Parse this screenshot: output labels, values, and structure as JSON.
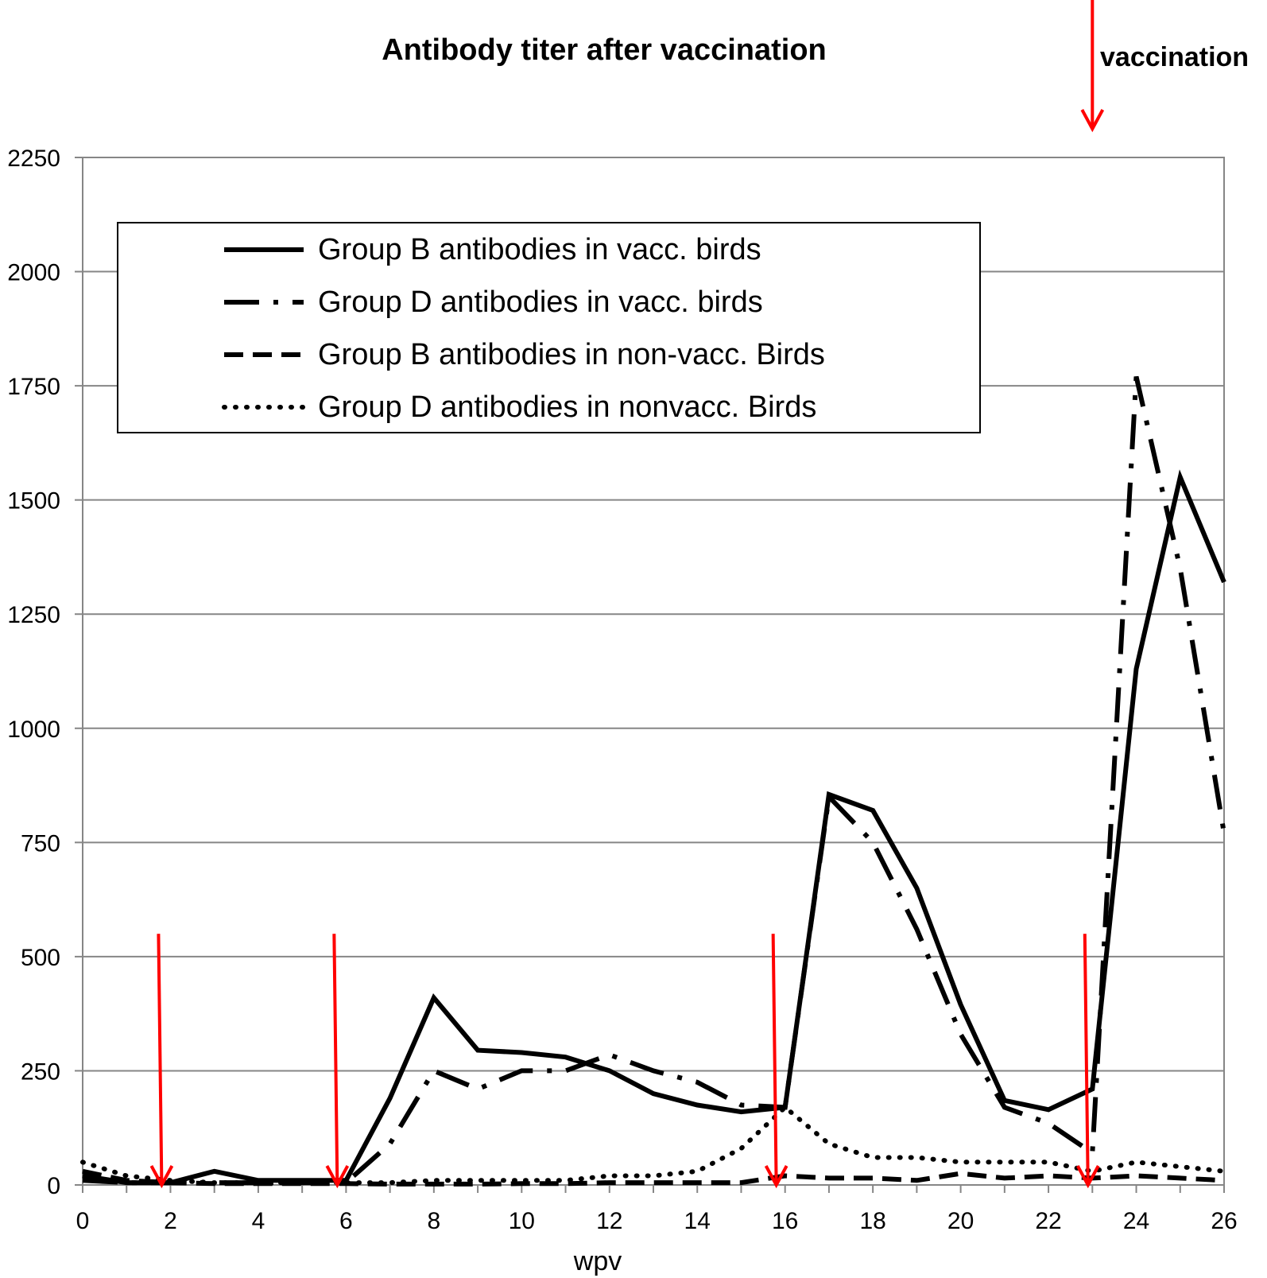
{
  "chart_data": {
    "type": "line",
    "title": "Antibody titer after vaccination",
    "xlabel": "wpv",
    "ylabel": "",
    "xlim": [
      0,
      26
    ],
    "ylim": [
      0,
      2250
    ],
    "x_ticks": [
      "0",
      "2",
      "4",
      "6",
      "8",
      "10",
      "12",
      "14",
      "16",
      "18",
      "20",
      "22",
      "24",
      "26"
    ],
    "y_ticks": [
      "0",
      "250",
      "500",
      "750",
      "1000",
      "1250",
      "1500",
      "1750",
      "2000",
      "2250"
    ],
    "grid": "horizontal",
    "legend_position": "top-left",
    "annotation": {
      "text": "vaccination",
      "x": 23,
      "color": "#ff0000"
    },
    "vaccination_weeks": [
      1.8,
      5.8,
      15.8,
      22.9
    ],
    "x": [
      0,
      1,
      2,
      3,
      4,
      5,
      6,
      7,
      8,
      9,
      10,
      11,
      12,
      13,
      14,
      15,
      16,
      17,
      18,
      19,
      20,
      21,
      22,
      23,
      24,
      25,
      26
    ],
    "series": [
      {
        "name": "Group B antibodies in vacc. birds",
        "style": "solid",
        "color": "#000000",
        "values": [
          20,
          5,
          5,
          30,
          10,
          10,
          10,
          190,
          410,
          295,
          290,
          280,
          250,
          200,
          175,
          160,
          170,
          855,
          820,
          650,
          395,
          185,
          165,
          210,
          1130,
          1550,
          1320
        ]
      },
      {
        "name": "Group D antibodies in vacc. birds",
        "style": "longdash-dot",
        "color": "#000000",
        "values": [
          10,
          5,
          5,
          5,
          5,
          5,
          5,
          90,
          250,
          210,
          250,
          250,
          285,
          250,
          225,
          175,
          170,
          850,
          750,
          560,
          330,
          170,
          135,
          70,
          1770,
          1350,
          770
        ]
      },
      {
        "name": "Group B antibodies in non-vacc. Birds",
        "style": "dash",
        "color": "#000000",
        "values": [
          30,
          10,
          5,
          3,
          3,
          3,
          3,
          2,
          2,
          2,
          3,
          3,
          5,
          5,
          5,
          5,
          20,
          15,
          15,
          10,
          25,
          15,
          20,
          15,
          20,
          15,
          10
        ]
      },
      {
        "name": "Group D antibodies in nonvacc. Birds",
        "style": "dot",
        "color": "#000000",
        "values": [
          50,
          20,
          10,
          5,
          5,
          5,
          5,
          5,
          10,
          10,
          10,
          10,
          20,
          20,
          30,
          80,
          170,
          90,
          60,
          60,
          50,
          50,
          50,
          30,
          50,
          40,
          30
        ]
      }
    ]
  }
}
